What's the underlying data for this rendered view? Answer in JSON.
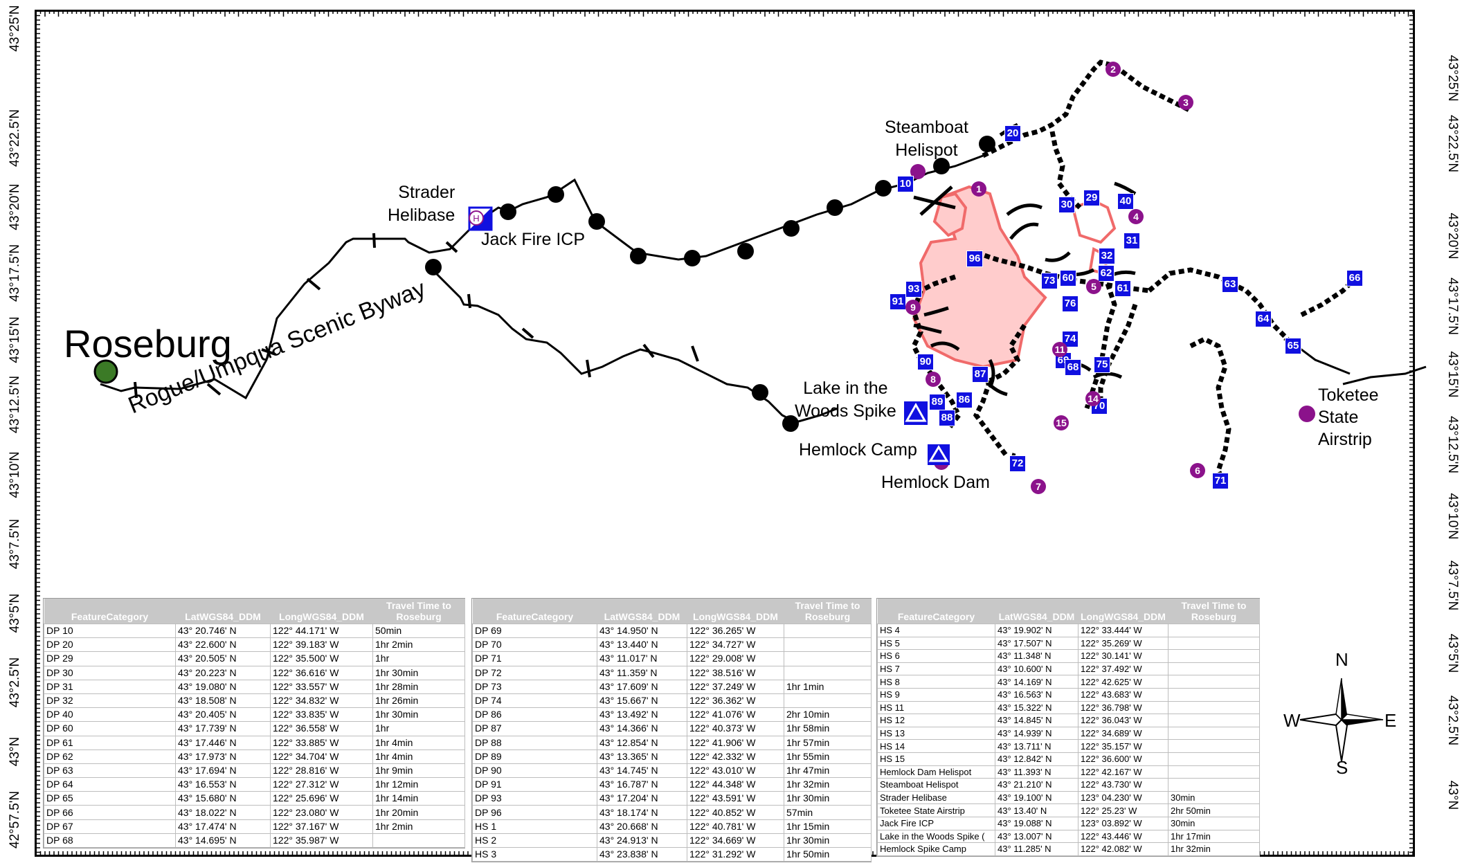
{
  "latitude_labels": {
    "left": [
      "42°57.5'N",
      "43°N",
      "43°2.5'N",
      "43°5'N",
      "43°7.5'N",
      "43°10'N",
      "43°12.5'N",
      "43°15'N",
      "43°17.5'N",
      "43°20'N",
      "43°22.5'N",
      "43°25'N"
    ],
    "right": [
      "43°N",
      "43°2.5'N",
      "43°5'N",
      "43°7.5'N",
      "43°10'N",
      "43°12.5'N",
      "43°15'N",
      "43°17.5'N",
      "43°20'N",
      "43°22.5'N",
      "43°25'N"
    ]
  },
  "places": {
    "roseburg": "Roseburg",
    "byway": "Rogue/Umpqua Scenic Byway",
    "strader": "Strader\nHelibase",
    "jack_fire": "Jack Fire ICP",
    "steamboat": "Steamboat\nHelispot",
    "lake_woods": "Lake in the\nWoods Spike",
    "hemlock_camp": "Hemlock Camp",
    "hemlock_dam": "Hemlock Dam",
    "toketee": "Toketee\nState\nAirstrip"
  },
  "dp_markers": [
    "20",
    "10",
    "30",
    "29",
    "40",
    "31",
    "96",
    "32",
    "62",
    "73",
    "60",
    "61",
    "63",
    "66",
    "64",
    "65",
    "93",
    "91",
    "76",
    "74",
    "69",
    "68",
    "75",
    "90",
    "87",
    "89",
    "86",
    "88",
    "70",
    "72",
    "71"
  ],
  "hs_markers": [
    "2",
    "3",
    "1",
    "4",
    "5",
    "9",
    "11",
    "8",
    "14",
    "15",
    "6",
    "7"
  ],
  "compass": {
    "n": "N",
    "s": "S",
    "e": "E",
    "w": "W"
  },
  "tables": [
    {
      "headers": [
        "FeatureCategory",
        "LatWGS84_DDM",
        "LongWGS84_DDM",
        "Travel Time to Roseburg"
      ],
      "rows": [
        [
          "DP 10",
          "43° 20.746' N",
          "122° 44.171' W",
          "50min"
        ],
        [
          "DP 20",
          "43° 22.600' N",
          "122° 39.183' W",
          "1hr 2min"
        ],
        [
          "DP 29",
          "43° 20.505' N",
          "122° 35.500' W",
          "1hr"
        ],
        [
          "DP 30",
          "43° 20.223' N",
          "122° 36.616' W",
          "1hr 30min"
        ],
        [
          "DP 31",
          "43° 19.080' N",
          "122° 33.557' W",
          "1hr 28min"
        ],
        [
          "DP 32",
          "43° 18.508' N",
          "122° 34.832' W",
          "1hr 26min"
        ],
        [
          "DP 40",
          "43° 20.405' N",
          "122° 33.835' W",
          "1hr 30min"
        ],
        [
          "DP 60",
          "43° 17.739' N",
          "122° 36.558' W",
          "1hr"
        ],
        [
          "DP 61",
          "43° 17.446' N",
          "122° 33.885' W",
          "1hr 4min"
        ],
        [
          "DP 62",
          "43° 17.973' N",
          "122° 34.704' W",
          "1hr 4min"
        ],
        [
          "DP 63",
          "43° 17.694' N",
          "122° 28.816' W",
          "1hr 9min"
        ],
        [
          "DP 64",
          "43° 16.553' N",
          "122° 27.312' W",
          "1hr 12min"
        ],
        [
          "DP 65",
          "43° 15.680' N",
          "122° 25.696' W",
          "1hr 14min"
        ],
        [
          "DP 66",
          "43° 18.022' N",
          "122° 23.080' W",
          "1hr 20min"
        ],
        [
          "DP 67",
          "43° 17.474' N",
          "122° 37.167' W",
          "1hr 2min"
        ],
        [
          "DP 68",
          "43° 14.695' N",
          "122° 35.987' W",
          ""
        ]
      ]
    },
    {
      "headers": [
        "FeatureCategory",
        "LatWGS84_DDM",
        "LongWGS84_DDM",
        "Travel Time to Roseburg"
      ],
      "rows": [
        [
          "DP 69",
          "43° 14.950' N",
          "122° 36.265' W",
          ""
        ],
        [
          "DP 70",
          "43° 13.440' N",
          "122° 34.727' W",
          ""
        ],
        [
          "DP 71",
          "43° 11.017' N",
          "122° 29.008' W",
          ""
        ],
        [
          "DP 72",
          "43° 11.359' N",
          "122° 38.516' W",
          ""
        ],
        [
          "DP 73",
          "43° 17.609' N",
          "122° 37.249' W",
          "1hr 1min"
        ],
        [
          "DP 74",
          "43° 15.667' N",
          "122° 36.362' W",
          ""
        ],
        [
          "DP 86",
          "43° 13.492' N",
          "122° 41.076' W",
          "2hr 10min"
        ],
        [
          "DP 87",
          "43° 14.366' N",
          "122° 40.373' W",
          "1hr 58min"
        ],
        [
          "DP 88",
          "43° 12.854' N",
          "122° 41.906' W",
          "1hr 57min"
        ],
        [
          "DP 89",
          "43° 13.365' N",
          "122° 42.332' W",
          "1hr 55min"
        ],
        [
          "DP 90",
          "43° 14.745' N",
          "122° 43.010' W",
          "1hr 47min"
        ],
        [
          "DP 91",
          "43° 16.787' N",
          "122° 44.348' W",
          "1hr 32min"
        ],
        [
          "DP 93",
          "43° 17.204' N",
          "122° 43.591' W",
          "1hr 30min"
        ],
        [
          "DP 96",
          "43° 18.174' N",
          "122° 40.852' W",
          "57min"
        ],
        [
          "HS 1",
          "43° 20.668' N",
          "122° 40.781' W",
          "1hr 15min"
        ],
        [
          "HS 2",
          "43° 24.913' N",
          "122° 34.669' W",
          "1hr 30min"
        ],
        [
          "HS 3",
          "43° 23.838' N",
          "122° 31.292' W",
          "1hr 50min"
        ]
      ]
    },
    {
      "headers": [
        "FeatureCategory",
        "LatWGS84_DDM",
        "LongWGS84_DDM",
        "Travel Time to Roseburg"
      ],
      "rows": [
        [
          "HS 4",
          "43° 19.902' N",
          "122° 33.444' W",
          ""
        ],
        [
          "HS 5",
          "43° 17.507' N",
          "122° 35.269' W",
          ""
        ],
        [
          "HS 6",
          "43° 11.348' N",
          "122° 30.141' W",
          ""
        ],
        [
          "HS 7",
          "43° 10.600' N",
          "122° 37.492' W",
          ""
        ],
        [
          "HS 8",
          "43° 14.169' N",
          "122° 42.625' W",
          ""
        ],
        [
          "HS 9",
          "43° 16.563' N",
          "122° 43.683' W",
          ""
        ],
        [
          "HS 11",
          "43° 15.322' N",
          "122° 36.798' W",
          ""
        ],
        [
          "HS 12",
          "43° 14.845' N",
          "122° 36.043' W",
          ""
        ],
        [
          "HS 13",
          "43° 14.939' N",
          "122° 34.689' W",
          ""
        ],
        [
          "HS 14",
          "43° 13.711' N",
          "122° 35.157' W",
          ""
        ],
        [
          "HS 15",
          "43° 12.842' N",
          "122° 36.600' W",
          ""
        ],
        [
          "Hemlock Dam Helispot",
          "43° 11.393' N",
          "122° 42.167' W",
          ""
        ],
        [
          "Steamboat Helispot",
          "43° 21.210' N",
          "122° 43.730' W",
          ""
        ],
        [
          "Strader Helibase",
          "43° 19.100' N",
          "123° 04.230' W",
          "30min"
        ],
        [
          "Toketee State Airstrip",
          "43° 13.40' N",
          "122° 25.23' W",
          "2hr 50min"
        ],
        [
          "Jack Fire ICP",
          "43° 19.088' N",
          "123° 03.892' W",
          "30min"
        ],
        [
          "Lake in the Woods Spike (",
          "43° 13.007' N",
          "122° 43.446' W",
          "1hr 17min"
        ],
        [
          "Hemlock Spike Camp",
          "43° 11.285' N",
          "122° 42.082' W",
          "1hr 32min"
        ]
      ]
    }
  ]
}
